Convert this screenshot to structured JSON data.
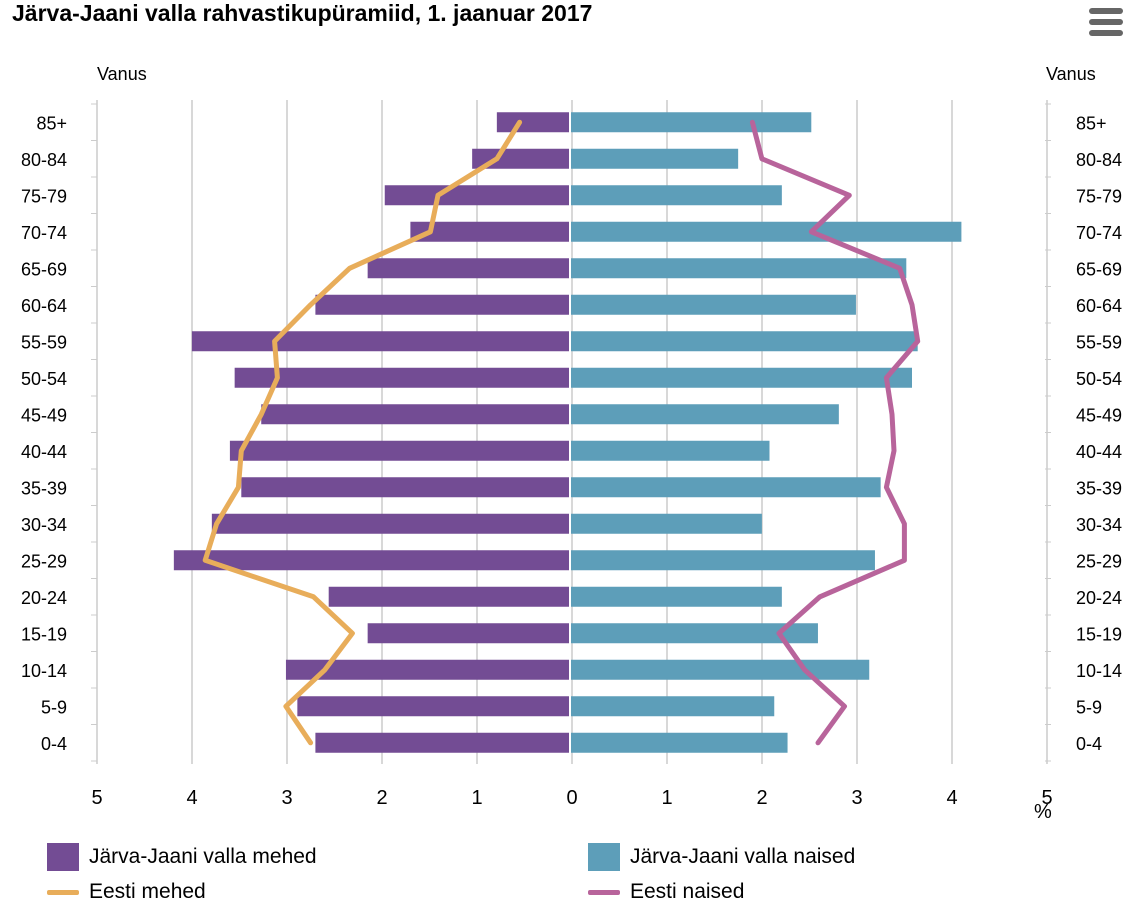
{
  "title": "Järva-Jaani valla rahvastikupüramiid, 1. jaanuar 2017",
  "menu_icon": "hamburger-menu-icon",
  "chart_data": {
    "type": "bar",
    "orientation": "horizontal-pyramid",
    "categories": [
      "85+",
      "80-84",
      "75-79",
      "70-74",
      "65-69",
      "60-64",
      "55-59",
      "50-54",
      "45-49",
      "40-44",
      "35-39",
      "30-34",
      "25-29",
      "20-24",
      "15-19",
      "10-14",
      "5-9",
      "0-4"
    ],
    "left_axis_label": "Vanus",
    "right_axis_label": "Vanus",
    "x_unit": "%",
    "x_ticks": [
      5,
      4,
      3,
      2,
      1,
      0,
      1,
      2,
      3,
      4,
      5
    ],
    "xlim": [
      -5,
      5
    ],
    "grid": true,
    "legend_position": "bottom",
    "series": [
      {
        "name": "Järva-Jaani valla mehed",
        "kind": "bar",
        "side": "left",
        "color": "#734c94",
        "values": [
          0.77,
          1.03,
          1.95,
          1.68,
          2.13,
          2.68,
          3.98,
          3.53,
          3.25,
          3.58,
          3.46,
          3.77,
          4.17,
          2.54,
          2.13,
          2.99,
          2.87,
          2.68
        ]
      },
      {
        "name": "Järva-Jaani valla naised",
        "kind": "bar",
        "side": "right",
        "color": "#5d9eb9",
        "values": [
          2.54,
          1.77,
          2.23,
          4.12,
          3.54,
          3.01,
          3.66,
          3.6,
          2.83,
          2.1,
          3.27,
          2.02,
          3.21,
          2.23,
          2.61,
          3.15,
          2.15,
          2.29
        ]
      },
      {
        "name": "Eesti mehed",
        "kind": "line",
        "side": "left",
        "color": "#e8ad5a",
        "values": [
          0.53,
          0.77,
          1.39,
          1.47,
          2.32,
          2.73,
          3.11,
          3.08,
          3.25,
          3.46,
          3.49,
          3.72,
          3.84,
          2.7,
          2.29,
          2.58,
          2.99,
          2.73
        ]
      },
      {
        "name": "Eesti naised",
        "kind": "line",
        "side": "right",
        "color": "#b8649b",
        "values": [
          1.92,
          2.02,
          2.94,
          2.54,
          3.47,
          3.6,
          3.66,
          3.33,
          3.39,
          3.41,
          3.33,
          3.52,
          3.52,
          2.63,
          2.2,
          2.47,
          2.89,
          2.61
        ]
      }
    ]
  }
}
